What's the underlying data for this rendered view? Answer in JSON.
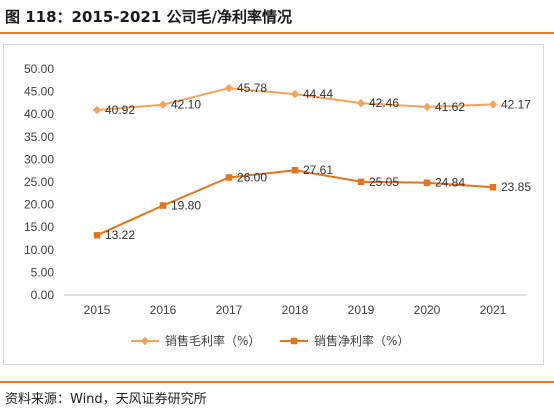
{
  "figure": {
    "title": "图 118：2015-2021 公司毛/净利率情况",
    "source": "资料来源：Wind，天风证券研究所"
  },
  "colors": {
    "gross_margin": "#f4a35a",
    "net_margin": "#e5741a",
    "accent_rule": "#e87f1e",
    "axis_text": "#404040",
    "axis_line": "#bfbfbf"
  },
  "chart_data": {
    "type": "line",
    "title": "",
    "xlabel": "",
    "ylabel": "",
    "categories": [
      "2015",
      "2016",
      "2017",
      "2018",
      "2019",
      "2020",
      "2021"
    ],
    "ylim": [
      0,
      50
    ],
    "yticks": [
      "0.00",
      "5.00",
      "10.00",
      "15.00",
      "20.00",
      "25.00",
      "30.00",
      "35.00",
      "40.00",
      "45.00",
      "50.00"
    ],
    "grid": false,
    "legend_position": "bottom",
    "series": [
      {
        "name": "销售毛利率（%）",
        "marker": "diamond",
        "values": [
          40.92,
          42.1,
          45.78,
          44.44,
          42.46,
          41.62,
          42.17
        ],
        "labels": [
          "40.92",
          "42.10",
          "45.78",
          "44.44",
          "42.46",
          "41.62",
          "42.17"
        ]
      },
      {
        "name": "销售净利率（%）",
        "marker": "square",
        "values": [
          13.22,
          19.8,
          26.0,
          27.61,
          25.05,
          24.84,
          23.85
        ],
        "labels": [
          "13.22",
          "19.80",
          "26.00",
          "27.61",
          "25.05",
          "24.84",
          "23.85"
        ]
      }
    ]
  }
}
